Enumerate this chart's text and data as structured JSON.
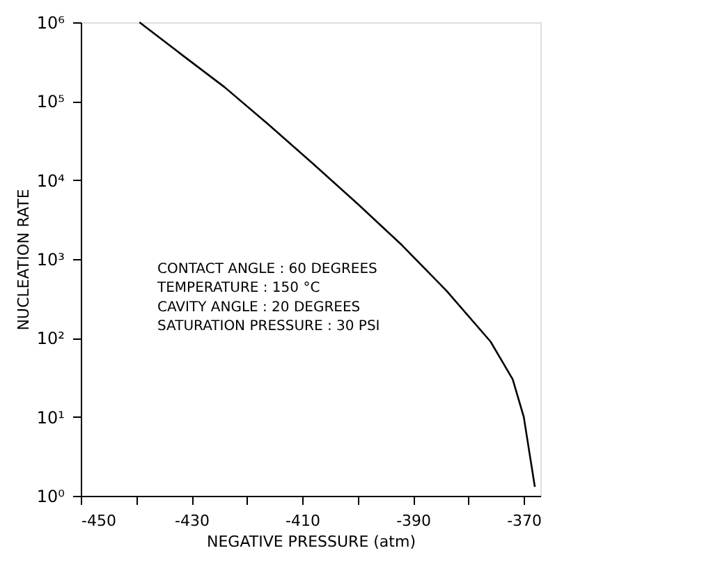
{
  "chart_data": {
    "type": "line",
    "xlabel": "NEGATIVE PRESSURE (atm)",
    "ylabel": "NUCLEATION RATE",
    "x": [
      -439.4,
      -432,
      -424,
      -416,
      -408,
      -400,
      -392,
      -384,
      -376,
      -372,
      -370,
      -368
    ],
    "series": [
      {
        "color": "#000000",
        "values": [
          1000000,
          400000,
          150000,
          50000,
          16000,
          5000,
          1500,
          400,
          90,
          30,
          10,
          1.3
        ]
      }
    ],
    "xlim": [
      -450,
      -367
    ],
    "xticks": [
      -450,
      {
        "value": -440,
        "label": null
      },
      -430,
      {
        "value": -420,
        "label": null
      },
      -410,
      {
        "value": -400,
        "label": null
      },
      -390,
      {
        "value": -380,
        "label": null
      },
      -370
    ],
    "ylim": [
      1,
      1000000
    ],
    "log": true,
    "yticks": [
      {
        "value": 1,
        "label": "10⁰"
      },
      {
        "value": 10,
        "label": "10¹"
      },
      {
        "value": 100,
        "label": "10²"
      },
      {
        "value": 1000,
        "label": "10³"
      },
      {
        "value": 10000,
        "label": "10⁴"
      },
      {
        "value": 100000,
        "label": "10⁵"
      },
      {
        "value": 1000000,
        "label": "10⁶"
      }
    ],
    "grid": false,
    "marker": "none",
    "line_style": "solid",
    "annotations": [
      "CONTACT ANGLE : 60   DEGREES",
      "TEMPERATURE    : 150 °C",
      "CAVITY ANGLE  : 20   DEGREES",
      "SATURATION PRESSURE : 30 PSI"
    ]
  }
}
